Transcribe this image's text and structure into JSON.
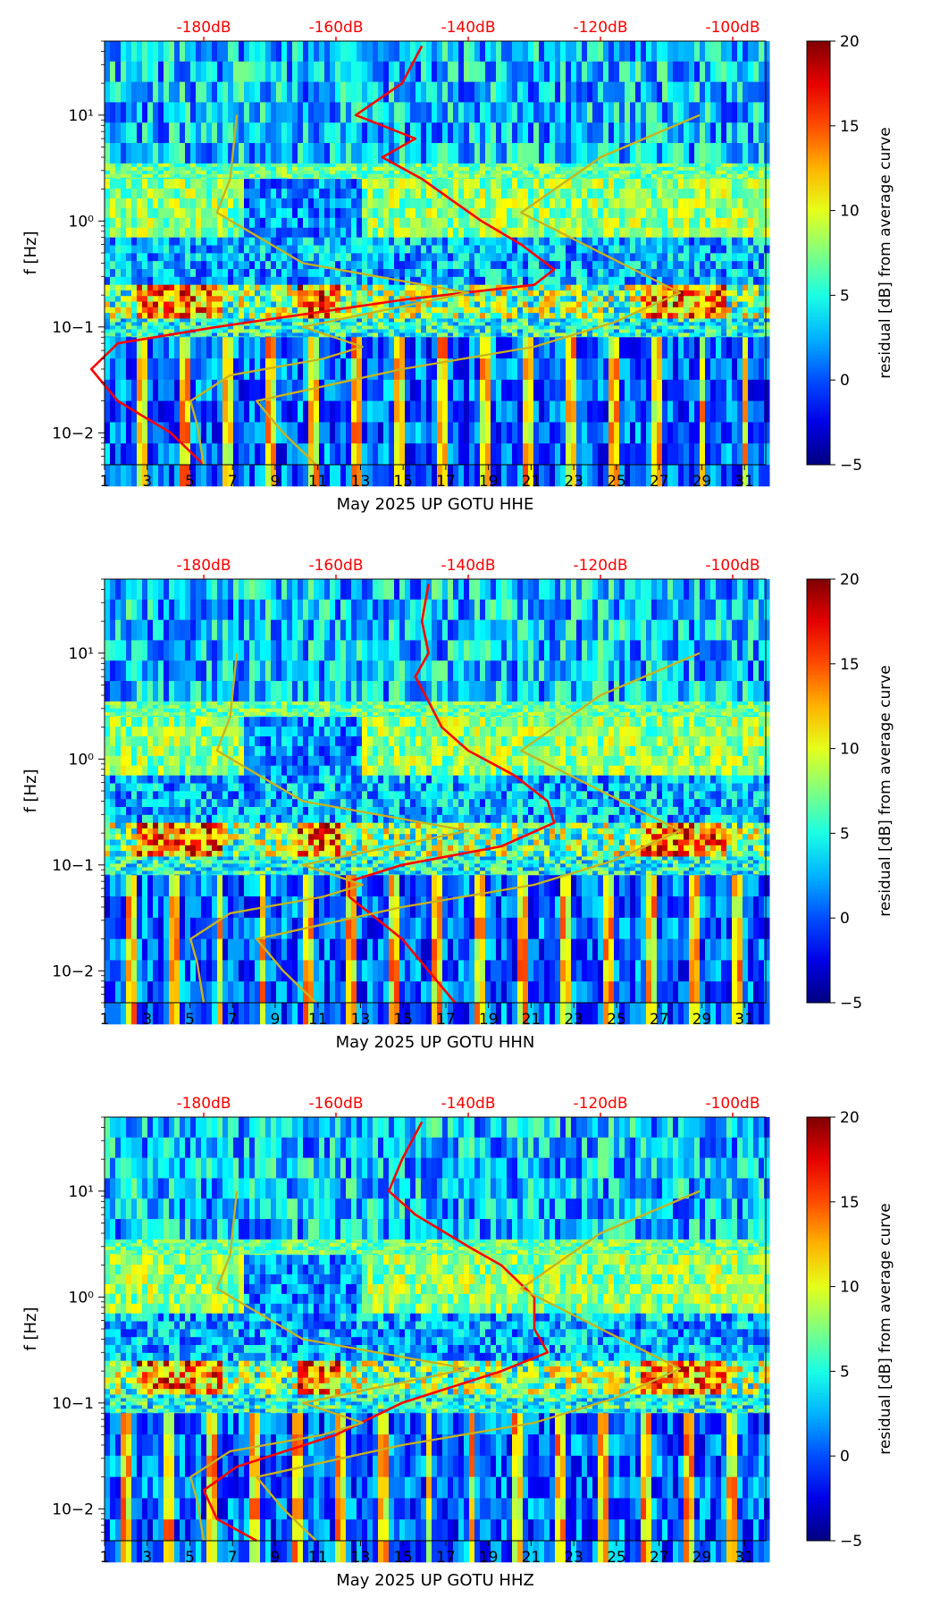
{
  "chart_data": [
    {
      "type": "heatmap",
      "xlabel": "May 2025 UP GOTU  HHE",
      "ylabel": "f [Hz]",
      "xlim": [
        1,
        32
      ],
      "xticks": [
        "1",
        "3",
        "5",
        "7",
        "9",
        "11",
        "13",
        "15",
        "17",
        "19",
        "21",
        "23",
        "25",
        "27",
        "29",
        "31"
      ],
      "ylim": [
        0.005,
        50
      ],
      "yscale": "log",
      "yticks": [
        "10−2",
        "10−1",
        "10⁰",
        "10¹"
      ],
      "top_axis": {
        "labels": [
          "-180dB",
          "-160dB",
          "-140dB",
          "-120dB",
          "-100dB"
        ],
        "color": "#ff0000"
      },
      "colorbar": {
        "label": "residual [dB] from average curve",
        "range": [
          -5,
          20
        ],
        "ticks": [
          "−5",
          "0",
          "5",
          "10",
          "15",
          "20"
        ],
        "colormap": "jet"
      },
      "series": [
        {
          "color": "#ff0000",
          "unit": "dB",
          "points": [
            [
              -180,
              0.005
            ],
            [
              -185,
              0.01
            ],
            [
              -193,
              0.02
            ],
            [
              -197,
              0.04
            ],
            [
              -193,
              0.07
            ],
            [
              -178,
              0.1
            ],
            [
              -150,
              0.18
            ],
            [
              -130,
              0.25
            ],
            [
              -127,
              0.35
            ],
            [
              -132,
              0.6
            ],
            [
              -138,
              1.0
            ],
            [
              -142,
              1.5
            ],
            [
              -147,
              2.5
            ],
            [
              -153,
              4
            ],
            [
              -148,
              6
            ],
            [
              -157,
              10
            ],
            [
              -150,
              20
            ],
            [
              -147,
              45
            ]
          ]
        },
        {
          "color": "#c8b21e",
          "unit": "dB",
          "points": [
            [
              -163,
              0.005
            ],
            [
              -168,
              0.01
            ],
            [
              -172,
              0.02
            ],
            [
              -150,
              0.04
            ],
            [
              -130,
              0.065
            ],
            [
              -118,
              0.11
            ],
            [
              -108,
              0.21
            ],
            [
              -132,
              1.2
            ],
            [
              -120,
              4
            ],
            [
              -105,
              10
            ]
          ]
        },
        {
          "color": "#c8b21e",
          "unit": "dB",
          "points": [
            [
              -180,
              0.005
            ],
            [
              -181,
              0.012
            ],
            [
              -182,
              0.02
            ],
            [
              -176,
              0.035
            ],
            [
              -162,
              0.05
            ],
            [
              -156,
              0.065
            ],
            [
              -165,
              0.1
            ],
            [
              -140,
              0.21
            ],
            [
              -165,
              0.4
            ],
            [
              -178,
              1.2
            ],
            [
              -176,
              2.5
            ],
            [
              -175,
              10
            ]
          ]
        }
      ]
    },
    {
      "type": "heatmap",
      "xlabel": "May 2025 UP GOTU  HHN",
      "ylabel": "f [Hz]",
      "xlim": [
        1,
        32
      ],
      "xticks": [
        "1",
        "3",
        "5",
        "7",
        "9",
        "11",
        "13",
        "15",
        "17",
        "19",
        "21",
        "23",
        "25",
        "27",
        "29",
        "31"
      ],
      "ylim": [
        0.005,
        50
      ],
      "yscale": "log",
      "yticks": [
        "10−2",
        "10−1",
        "10⁰",
        "10¹"
      ],
      "top_axis": {
        "labels": [
          "-180dB",
          "-160dB",
          "-140dB",
          "-120dB",
          "-100dB"
        ],
        "color": "#ff0000"
      },
      "colorbar": {
        "label": "residual [dB] from average curve",
        "range": [
          -5,
          20
        ],
        "ticks": [
          "−5",
          "0",
          "5",
          "10",
          "15",
          "20"
        ],
        "colormap": "jet"
      },
      "series": [
        {
          "color": "#ff0000",
          "unit": "dB",
          "points": [
            [
              -142,
              0.005
            ],
            [
              -146,
              0.01
            ],
            [
              -150,
              0.02
            ],
            [
              -158,
              0.05
            ],
            [
              -158,
              0.07
            ],
            [
              -150,
              0.1
            ],
            [
              -135,
              0.15
            ],
            [
              -127,
              0.25
            ],
            [
              -128,
              0.4
            ],
            [
              -133,
              0.7
            ],
            [
              -140,
              1.2
            ],
            [
              -144,
              2
            ],
            [
              -146,
              3.5
            ],
            [
              -148,
              6
            ],
            [
              -146,
              10
            ],
            [
              -147,
              20
            ],
            [
              -146,
              45
            ]
          ]
        },
        {
          "color": "#c8b21e",
          "unit": "dB",
          "points": [
            [
              -163,
              0.005
            ],
            [
              -168,
              0.01
            ],
            [
              -172,
              0.02
            ],
            [
              -150,
              0.04
            ],
            [
              -130,
              0.065
            ],
            [
              -118,
              0.11
            ],
            [
              -108,
              0.21
            ],
            [
              -132,
              1.2
            ],
            [
              -120,
              4
            ],
            [
              -105,
              10
            ]
          ]
        },
        {
          "color": "#c8b21e",
          "unit": "dB",
          "points": [
            [
              -180,
              0.005
            ],
            [
              -181,
              0.012
            ],
            [
              -182,
              0.02
            ],
            [
              -176,
              0.035
            ],
            [
              -162,
              0.05
            ],
            [
              -156,
              0.065
            ],
            [
              -165,
              0.1
            ],
            [
              -140,
              0.21
            ],
            [
              -165,
              0.4
            ],
            [
              -178,
              1.2
            ],
            [
              -176,
              2.5
            ],
            [
              -175,
              10
            ]
          ]
        }
      ]
    },
    {
      "type": "heatmap",
      "xlabel": "May 2025 UP GOTU  HHZ",
      "ylabel": "f [Hz]",
      "xlim": [
        1,
        32
      ],
      "xticks": [
        "1",
        "3",
        "5",
        "7",
        "9",
        "11",
        "13",
        "15",
        "17",
        "19",
        "21",
        "23",
        "25",
        "27",
        "29",
        "31"
      ],
      "ylim": [
        0.005,
        50
      ],
      "yscale": "log",
      "yticks": [
        "10−2",
        "10−1",
        "10⁰",
        "10¹"
      ],
      "top_axis": {
        "labels": [
          "-180dB",
          "-160dB",
          "-140dB",
          "-120dB",
          "-100dB"
        ],
        "color": "#ff0000"
      },
      "colorbar": {
        "label": "residual [dB] from average curve",
        "range": [
          -5,
          20
        ],
        "ticks": [
          "−5",
          "0",
          "5",
          "10",
          "15",
          "20"
        ],
        "colormap": "jet"
      },
      "series": [
        {
          "color": "#ff0000",
          "unit": "dB",
          "points": [
            [
              -172,
              0.005
            ],
            [
              -178,
              0.008
            ],
            [
              -180,
              0.015
            ],
            [
              -175,
              0.025
            ],
            [
              -160,
              0.05
            ],
            [
              -150,
              0.1
            ],
            [
              -135,
              0.2
            ],
            [
              -128,
              0.3
            ],
            [
              -130,
              0.5
            ],
            [
              -130,
              1.0
            ],
            [
              -135,
              2
            ],
            [
              -140,
              3
            ],
            [
              -148,
              6
            ],
            [
              -152,
              10
            ],
            [
              -150,
              20
            ],
            [
              -147,
              45
            ]
          ]
        },
        {
          "color": "#c8b21e",
          "unit": "dB",
          "points": [
            [
              -163,
              0.005
            ],
            [
              -168,
              0.01
            ],
            [
              -172,
              0.02
            ],
            [
              -150,
              0.04
            ],
            [
              -130,
              0.065
            ],
            [
              -118,
              0.11
            ],
            [
              -108,
              0.21
            ],
            [
              -132,
              1.2
            ],
            [
              -120,
              4
            ],
            [
              -105,
              10
            ]
          ]
        },
        {
          "color": "#c8b21e",
          "unit": "dB",
          "points": [
            [
              -180,
              0.005
            ],
            [
              -181,
              0.012
            ],
            [
              -182,
              0.02
            ],
            [
              -176,
              0.035
            ],
            [
              -162,
              0.05
            ],
            [
              -156,
              0.065
            ],
            [
              -165,
              0.1
            ],
            [
              -140,
              0.21
            ],
            [
              -165,
              0.4
            ],
            [
              -178,
              1.2
            ],
            [
              -176,
              2.5
            ],
            [
              -175,
              10
            ]
          ]
        }
      ]
    }
  ]
}
